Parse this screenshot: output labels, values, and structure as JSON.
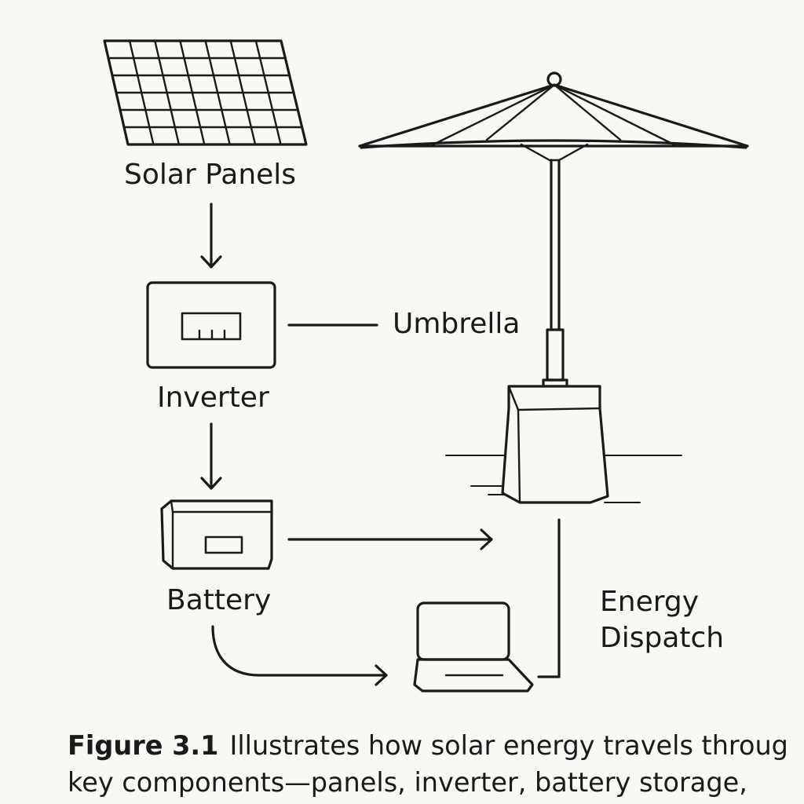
{
  "labels": {
    "solar_panels": "Solar Panels",
    "inverter": "Inverter",
    "umbrella": "Umbrella",
    "battery": "Battery",
    "energy_dispatch_line1": "Energy",
    "energy_dispatch_line2": "Dispatch"
  },
  "caption": {
    "figure": "Figure 3.1",
    "line1": "Illustrates how solar energy travels throug",
    "line2": "key components—panels, inverter, battery storage,"
  },
  "icons": [
    "solar-panel-icon",
    "inverter-icon",
    "battery-icon",
    "umbrella-icon",
    "umbrella-base-icon",
    "laptop-icon"
  ],
  "colors": {
    "ink": "#1a1a1a",
    "background": "#f8f8f4"
  }
}
